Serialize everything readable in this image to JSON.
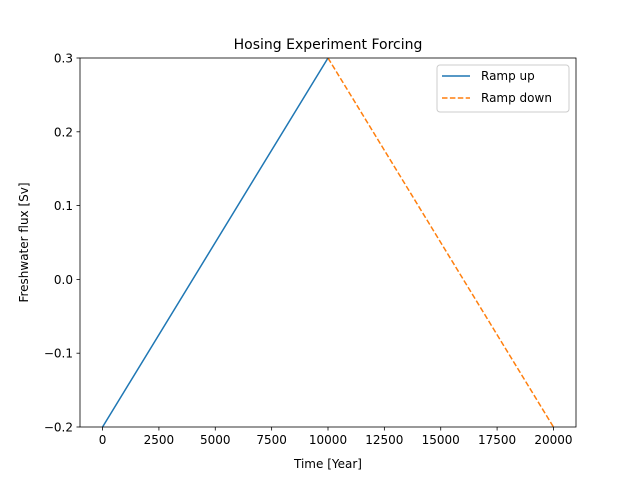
{
  "chart_data": {
    "type": "line",
    "title": "Hosing Experiment Forcing",
    "xlabel": "Time [Year]",
    "ylabel": "Freshwater flux [Sv]",
    "xlim": [
      -1000,
      21000
    ],
    "ylim": [
      -0.2,
      0.3
    ],
    "x_ticks": [
      0,
      2500,
      5000,
      7500,
      10000,
      12500,
      15000,
      17500,
      20000
    ],
    "x_tick_labels": [
      "0",
      "2500",
      "5000",
      "7500",
      "10000",
      "12500",
      "15000",
      "17500",
      "20000"
    ],
    "y_ticks": [
      -0.2,
      -0.1,
      0.0,
      0.1,
      0.2,
      0.3
    ],
    "y_tick_labels": [
      "−0.2",
      "−0.1",
      "0.0",
      "0.1",
      "0.2",
      "0.3"
    ],
    "grid": false,
    "legend_position": "top-right",
    "series": [
      {
        "name": "Ramp up",
        "color": "#1f77b4",
        "style": "solid",
        "x": [
          0,
          10000
        ],
        "y": [
          -0.2,
          0.3
        ]
      },
      {
        "name": "Ramp down",
        "color": "#ff7f0e",
        "style": "dashed",
        "x": [
          10000,
          20000
        ],
        "y": [
          0.3,
          -0.2
        ]
      }
    ]
  }
}
